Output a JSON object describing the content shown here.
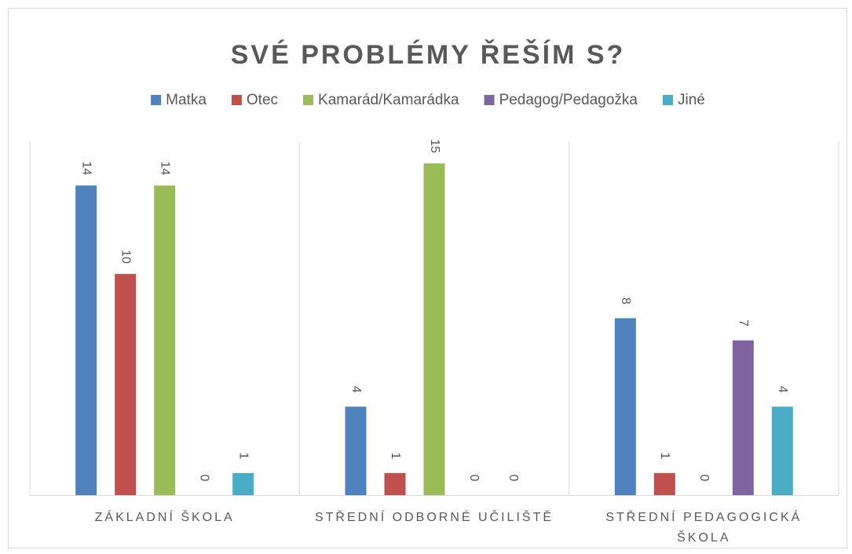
{
  "chart_data": {
    "type": "bar",
    "title": "SVÉ PROBLÉMY ŘEŠÍM S?",
    "categories": [
      "ZÁKLADNÍ ŠKOLA",
      "STŘEDNÍ ODBORNÉ UČILIŠTĚ",
      "STŘEDNÍ PEDAGOGICKÁ ŠKOLA"
    ],
    "series": [
      {
        "name": "Matka",
        "color": "#4f81bd",
        "values": [
          14,
          4,
          8
        ]
      },
      {
        "name": "Otec",
        "color": "#c0504d",
        "values": [
          10,
          1,
          1
        ]
      },
      {
        "name": "Kamarád/Kamarádka",
        "color": "#9bbb59",
        "values": [
          14,
          15,
          0
        ]
      },
      {
        "name": "Pedagog/Pedagožka",
        "color": "#8064a2",
        "values": [
          0,
          0,
          7
        ]
      },
      {
        "name": "Jiné",
        "color": "#4bacc6",
        "values": [
          1,
          0,
          4
        ]
      }
    ],
    "ylim": [
      0,
      16
    ],
    "legend": "top"
  }
}
